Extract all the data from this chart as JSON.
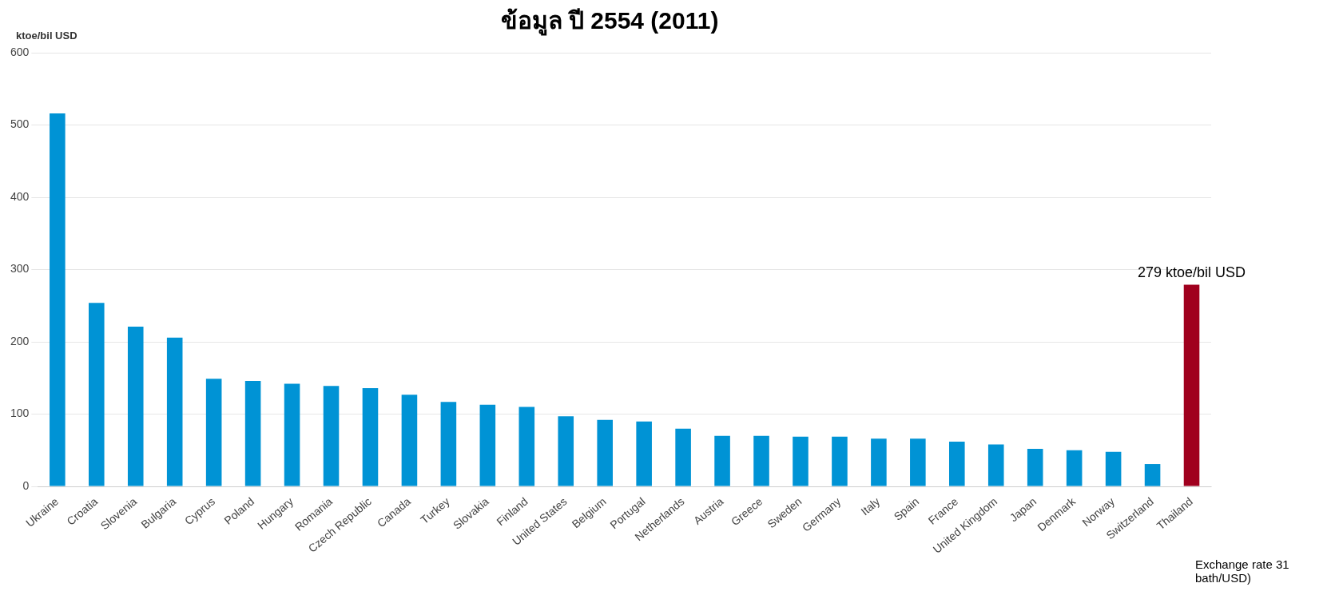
{
  "chart_data": {
    "type": "bar",
    "title": "ข้อมูล ปี 2554 (2011)",
    "ylabel": "ktoe/bil USD",
    "categories": [
      "Ukraine",
      "Croatia",
      "Slovenia",
      "Bulgaria",
      "Cyprus",
      "Poland",
      "Hungary",
      "Romania",
      "Czech Republic",
      "Canada",
      "Turkey",
      "Slovakia",
      "Finland",
      "United States",
      "Belgium",
      "Portugal",
      "Netherlands",
      "Austria",
      "Greece",
      "Sweden",
      "Germany",
      "Italy",
      "Spain",
      "France",
      "United Kingdom",
      "Japan",
      "Denmark",
      "Norway",
      "Switzerland",
      "Thailand"
    ],
    "values": [
      516,
      254,
      221,
      206,
      149,
      146,
      142,
      139,
      136,
      127,
      117,
      113,
      110,
      97,
      92,
      90,
      80,
      70,
      70,
      69,
      69,
      66,
      66,
      62,
      58,
      52,
      50,
      48,
      31,
      279
    ],
    "colors": [
      "#0093d5",
      "#0093d5",
      "#0093d5",
      "#0093d5",
      "#0093d5",
      "#0093d5",
      "#0093d5",
      "#0093d5",
      "#0093d5",
      "#0093d5",
      "#0093d5",
      "#0093d5",
      "#0093d5",
      "#0093d5",
      "#0093d5",
      "#0093d5",
      "#0093d5",
      "#0093d5",
      "#0093d5",
      "#0093d5",
      "#0093d5",
      "#0093d5",
      "#0093d5",
      "#0093d5",
      "#0093d5",
      "#0093d5",
      "#0093d5",
      "#0093d5",
      "#0093d5",
      "#a0001e"
    ],
    "value_labels": [
      null,
      null,
      null,
      null,
      null,
      null,
      null,
      null,
      null,
      null,
      null,
      null,
      null,
      null,
      null,
      null,
      null,
      null,
      null,
      null,
      null,
      null,
      null,
      null,
      null,
      null,
      null,
      null,
      null,
      "279 ktoe/bil USD"
    ],
    "ylim": [
      0,
      600
    ],
    "yticks": [
      0,
      100,
      200,
      300,
      400,
      500,
      600
    ],
    "grid": "y",
    "legend": false,
    "annotations": [
      "Exchange rate 31 bath/USD)"
    ]
  }
}
